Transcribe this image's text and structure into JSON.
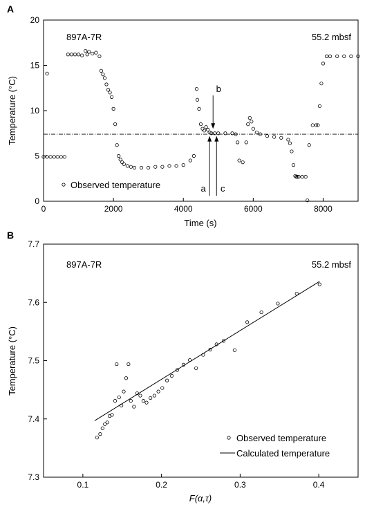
{
  "chart_data": [
    {
      "panel_label": "A",
      "type": "scatter",
      "site_label": "897A-7R",
      "depth_label": "55.2 mbsf",
      "xlabel": "Time (s)",
      "ylabel": "Temperature (°C)",
      "xlim": [
        0,
        9000
      ],
      "ylim": [
        0,
        20
      ],
      "xticks": [
        0,
        2000,
        4000,
        6000,
        8000
      ],
      "yticks": [
        0,
        5,
        10,
        15,
        20
      ],
      "grid": false,
      "legend_position": "bottom-left",
      "series": [
        {
          "name": "Observed temperature",
          "marker": "open-circle",
          "x": [
            0,
            100,
            200,
            300,
            400,
            500,
            600,
            100,
            700,
            800,
            900,
            1000,
            1100,
            1200,
            1250,
            1300,
            1400,
            1500,
            1600,
            1650,
            1700,
            1750,
            1800,
            1850,
            1900,
            1950,
            2000,
            2050,
            2100,
            2150,
            2200,
            2250,
            2300,
            2400,
            2500,
            2600,
            2800,
            3000,
            3200,
            3400,
            3600,
            3800,
            4000,
            4200,
            4300,
            4380,
            4400,
            4450,
            4500,
            4550,
            4600,
            4650,
            4700,
            4750,
            4800,
            4900,
            5000,
            5200,
            5400,
            5500,
            5550,
            5600,
            5700,
            5800,
            5850,
            5900,
            5950,
            6000,
            6100,
            6200,
            6400,
            6600,
            6800,
            7000,
            7050,
            7100,
            7150,
            7200,
            7230,
            7260,
            7300,
            7400,
            7500,
            7550,
            7600,
            7700,
            7800,
            7850,
            7900,
            7950,
            8000,
            8100,
            8200,
            8400,
            8600,
            8800,
            9000
          ],
          "y": [
            4.9,
            4.9,
            4.9,
            4.9,
            4.9,
            4.9,
            4.9,
            14.1,
            16.2,
            16.2,
            16.2,
            16.2,
            16.1,
            16.6,
            16.2,
            16.5,
            16.3,
            16.4,
            16.0,
            14.4,
            14.0,
            13.6,
            12.9,
            12.3,
            12.0,
            11.5,
            10.2,
            8.5,
            6.2,
            5.0,
            4.6,
            4.3,
            4.1,
            3.9,
            3.8,
            3.7,
            3.7,
            3.7,
            3.8,
            3.8,
            3.9,
            3.9,
            4.0,
            4.5,
            5.0,
            12.4,
            11.2,
            10.2,
            8.5,
            8.0,
            7.8,
            8.2,
            7.9,
            7.6,
            7.5,
            7.5,
            7.5,
            7.5,
            7.5,
            7.4,
            6.5,
            4.5,
            4.3,
            6.5,
            8.5,
            9.2,
            8.8,
            8.0,
            7.6,
            7.4,
            7.2,
            7.1,
            7.0,
            6.8,
            6.4,
            5.5,
            4.0,
            2.8,
            2.7,
            2.7,
            2.7,
            2.7,
            2.7,
            0.1,
            6.2,
            8.4,
            8.4,
            8.4,
            10.5,
            13.0,
            15.2,
            16.0,
            16.0,
            16.0,
            16.0,
            16.0,
            16.0
          ]
        }
      ],
      "reference_line": {
        "y": 7.4,
        "style": "dash-dot"
      },
      "annotations": [
        {
          "text": "a",
          "x": 4750,
          "arrow_top_y": 7.2
        },
        {
          "text": "b",
          "x": 4850,
          "arrow_bottom_y": 8.0
        },
        {
          "text": "c",
          "x": 4950,
          "arrow_top_y": 7.2
        }
      ]
    },
    {
      "panel_label": "B",
      "type": "scatter",
      "site_label": "897A-7R",
      "depth_label": "55.2 mbsf",
      "xlabel": "F(α,τ)",
      "ylabel": "Temperature (°C)",
      "xlim": [
        0.05,
        0.45
      ],
      "ylim": [
        7.3,
        7.7
      ],
      "xticks": [
        0.1,
        0.2,
        0.3,
        0.4
      ],
      "xtick_labels": [
        "0.1",
        "0.2",
        "0.3",
        "0.4"
      ],
      "yticks": [
        7.3,
        7.4,
        7.5,
        7.6,
        7.7
      ],
      "ytick_labels": [
        "7.3",
        "7.4",
        "7.5",
        "7.6",
        "7.7"
      ],
      "grid": false,
      "legend_position": "bottom-right",
      "series": [
        {
          "name": "Observed temperature",
          "marker": "open-circle",
          "x": [
            0.118,
            0.122,
            0.125,
            0.128,
            0.131,
            0.134,
            0.137,
            0.141,
            0.143,
            0.146,
            0.149,
            0.152,
            0.155,
            0.158,
            0.161,
            0.165,
            0.169,
            0.173,
            0.177,
            0.181,
            0.186,
            0.191,
            0.196,
            0.201,
            0.207,
            0.213,
            0.22,
            0.228,
            0.236,
            0.244,
            0.253,
            0.262,
            0.27,
            0.279,
            0.293,
            0.309,
            0.327,
            0.348,
            0.372,
            0.401
          ],
          "y": [
            7.368,
            7.374,
            7.384,
            7.391,
            7.394,
            7.405,
            7.407,
            7.431,
            7.494,
            7.437,
            7.423,
            7.447,
            7.47,
            7.494,
            7.431,
            7.421,
            7.444,
            7.44,
            7.431,
            7.428,
            7.436,
            7.44,
            7.447,
            7.453,
            7.466,
            7.474,
            7.484,
            7.493,
            7.501,
            7.487,
            7.51,
            7.519,
            7.528,
            7.534,
            7.518,
            7.566,
            7.583,
            7.598,
            7.615,
            7.631
          ]
        },
        {
          "name": "Calculated temperature",
          "marker": "line",
          "x": [
            0.115,
            0.401
          ],
          "y": [
            7.397,
            7.636
          ]
        }
      ]
    }
  ]
}
